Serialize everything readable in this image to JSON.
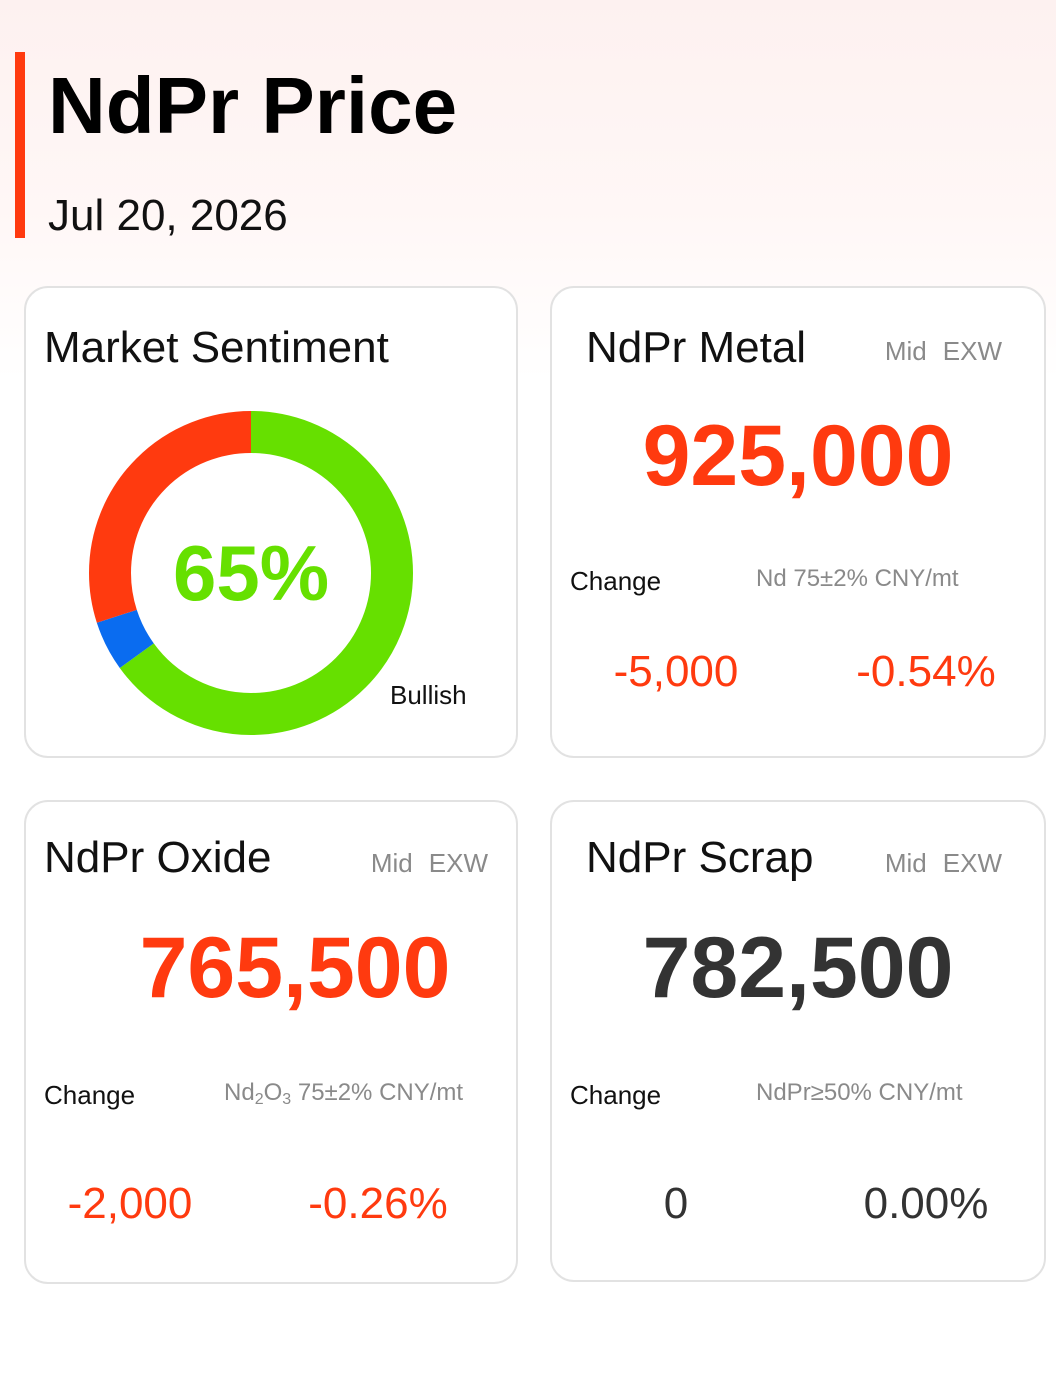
{
  "header": {
    "title": "NdPr Price",
    "date": "Jul 20, 2026",
    "accent_color": "#ff3a0f"
  },
  "sentiment": {
    "title": "Market Sentiment",
    "percent_label": "65%",
    "caption": "Bullish",
    "segments": [
      {
        "name": "bullish",
        "share": 0.65,
        "color": "#66e000"
      },
      {
        "name": "neutral",
        "share": 0.05,
        "color": "#0a6cf0"
      },
      {
        "name": "bearish",
        "share": 0.3,
        "color": "#ff3a0f"
      }
    ]
  },
  "cards": {
    "metal": {
      "title": "NdPr Metal",
      "mid": "Mid",
      "exw": "EXW",
      "price": "925,000",
      "price_color": "#ff3a0f",
      "change_label": "Change",
      "spec": "Nd 75±2% CNY/mt",
      "change_abs": "-5,000",
      "change_pct": "-0.54%"
    },
    "oxide": {
      "title": "NdPr Oxide",
      "mid": "Mid",
      "exw": "EXW",
      "price": "765,500",
      "price_color": "#ff3a0f",
      "change_label": "Change",
      "spec_prefix": "Nd",
      "spec_sub1": "2",
      "spec_mid": "O",
      "spec_sub2": "3",
      "spec_suffix": " 75±2% CNY/mt",
      "change_abs": "-2,000",
      "change_pct": "-0.26%"
    },
    "scrap": {
      "title": "NdPr Scrap",
      "mid": "Mid",
      "exw": "EXW",
      "price": "782,500",
      "price_color": "#333333",
      "change_label": "Change",
      "spec": "NdPr≥50% CNY/mt",
      "change_abs": "0",
      "change_pct": "0.00%"
    }
  }
}
